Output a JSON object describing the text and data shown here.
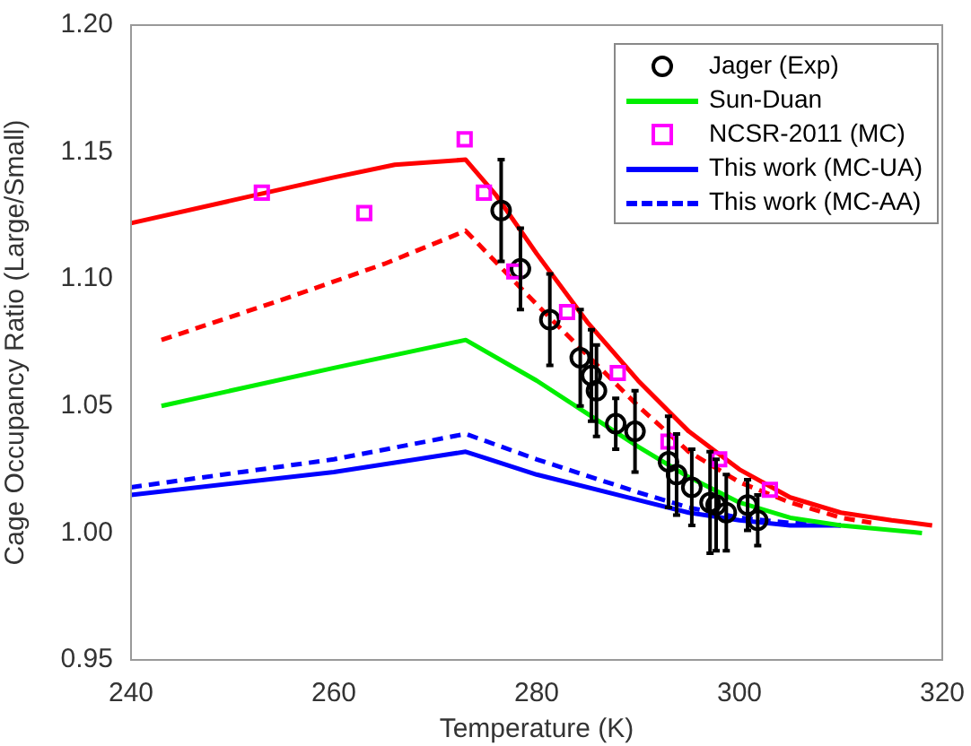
{
  "chart_data": {
    "type": "line",
    "xlabel": "Temperature (K)",
    "ylabel": "Cage Occupancy Ratio (Large/Small)",
    "xlim": [
      240,
      320
    ],
    "xticks": [
      240,
      260,
      280,
      300,
      320
    ],
    "ylim": [
      0.95,
      1.2
    ],
    "yticks": [
      0.95,
      {
        "value": 1.0,
        "label": "1.00"
      },
      1.05,
      {
        "value": 1.1,
        "label": "1.10"
      },
      1.15,
      {
        "value": 1.2,
        "label": "1.20"
      }
    ],
    "grid": false,
    "legend": "top right",
    "series": [
      {
        "name": "Jager (Exp)",
        "type": "scatter",
        "marker": "circle",
        "color": "#000000",
        "x": [
          276.5,
          278.4,
          281.3,
          284.3,
          285.4,
          285.9,
          287.8,
          289.7,
          293.0,
          293.8,
          295.3,
          297.1,
          297.7,
          298.7,
          300.8,
          301.8
        ],
        "values": [
          1.127,
          1.104,
          1.084,
          1.069,
          1.062,
          1.056,
          1.043,
          1.04,
          1.028,
          1.023,
          1.018,
          1.012,
          1.011,
          1.008,
          1.011,
          1.005
        ],
        "errors": [
          0.02,
          0.016,
          0.018,
          0.019,
          0.018,
          0.018,
          0.01,
          0.016,
          0.018,
          0.016,
          0.015,
          0.02,
          0.018,
          0.015,
          0.01,
          0.01
        ]
      },
      {
        "color": "#ff0000",
        "line_style": "solid",
        "marker": "none",
        "x": [
          240,
          250,
          260,
          266,
          273,
          276,
          280,
          285,
          290,
          295,
          300,
          305,
          310,
          315,
          319
        ],
        "values": [
          1.122,
          1.131,
          1.14,
          1.145,
          1.147,
          1.133,
          1.11,
          1.083,
          1.06,
          1.04,
          1.025,
          1.014,
          1.008,
          1.005,
          1.003
        ]
      },
      {
        "color": "#ff0000",
        "line_style": "dashed",
        "marker": "none",
        "x": [
          243,
          255,
          265,
          273,
          280,
          285,
          290,
          295,
          300,
          305,
          310,
          313
        ],
        "values": [
          1.076,
          1.092,
          1.106,
          1.119,
          1.09,
          1.07,
          1.05,
          1.032,
          1.02,
          1.012,
          1.006,
          1.004
        ]
      },
      {
        "name": "Sun-Duan",
        "color": "#00ee00",
        "line_style": "solid",
        "marker": "none",
        "x": [
          243,
          260,
          273,
          280,
          285,
          290,
          295,
          300,
          305,
          310,
          318
        ],
        "values": [
          1.05,
          1.065,
          1.076,
          1.06,
          1.047,
          1.034,
          1.022,
          1.012,
          1.006,
          1.003,
          1.0
        ]
      },
      {
        "name": "NCSR-2011 (MC)",
        "type": "scatter",
        "marker": "square",
        "color": "#ff00ff",
        "x": [
          252.9,
          263.0,
          272.9,
          274.8,
          277.8,
          283.0,
          288.0,
          293.0,
          298.0,
          303.0
        ],
        "values": [
          1.134,
          1.126,
          1.155,
          1.134,
          1.103,
          1.087,
          1.063,
          1.036,
          1.029,
          1.017
        ]
      },
      {
        "name": "This work (MC-UA)",
        "color": "#0000ff",
        "line_style": "solid",
        "marker": "none",
        "x": [
          240,
          260,
          273,
          280,
          290,
          295,
          300,
          305,
          310
        ],
        "values": [
          1.015,
          1.024,
          1.032,
          1.023,
          1.013,
          1.008,
          1.005,
          1.003,
          1.003
        ]
      },
      {
        "name": "This work (MC-AA)",
        "color": "#0000ff",
        "line_style": "dashed",
        "marker": "none",
        "x": [
          240,
          260,
          273,
          280,
          290,
          295,
          300,
          305,
          310
        ],
        "values": [
          1.018,
          1.029,
          1.039,
          1.029,
          1.016,
          1.01,
          1.006,
          1.004,
          1.003
        ]
      }
    ]
  }
}
